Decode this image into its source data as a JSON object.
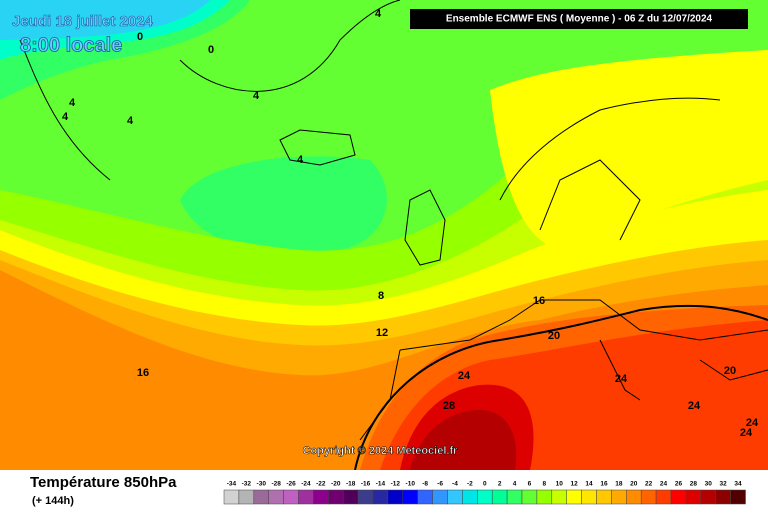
{
  "header": {
    "date": "Jeudi 18 juillet 2024",
    "time": "8:00 locale",
    "run": "Ensemble ECMWF ENS  ( Moyenne )  -  06 Z du 12/07/2024"
  },
  "copyright": "Copyright © 2024 Meteociel.fr",
  "footer": {
    "title": "Température 850hPa",
    "lead": "(+ 144h)"
  },
  "contour_labels": [
    4,
    0,
    0,
    4,
    4,
    4,
    4,
    4,
    8,
    12,
    16,
    16,
    20,
    20,
    24,
    24,
    24,
    24,
    24,
    28
  ],
  "scale": {
    "values": [
      -34,
      -32,
      -30,
      -28,
      -26,
      -24,
      -22,
      -20,
      -18,
      -16,
      -14,
      -12,
      -10,
      -8,
      -6,
      -4,
      -2,
      0,
      2,
      4,
      6,
      8,
      10,
      12,
      14,
      16,
      18,
      20,
      22,
      24,
      26,
      28,
      30,
      32,
      34
    ],
    "colors": [
      "#d2d2d2",
      "#b4b4b4",
      "#9a6a9a",
      "#b070b0",
      "#c060c0",
      "#a030a0",
      "#8c008c",
      "#700070",
      "#50005a",
      "#3c3c8c",
      "#2828a0",
      "#0000c8",
      "#0000ff",
      "#3264ff",
      "#3296ff",
      "#32c8ff",
      "#00e6e6",
      "#00ffc8",
      "#00ff96",
      "#32ff64",
      "#64ff32",
      "#96ff00",
      "#c8ff00",
      "#ffff00",
      "#ffe600",
      "#ffc800",
      "#ffaa00",
      "#ff8c00",
      "#ff6400",
      "#ff3c00",
      "#ff0000",
      "#dc0000",
      "#b40000",
      "#8c0000",
      "#500000"
    ]
  }
}
